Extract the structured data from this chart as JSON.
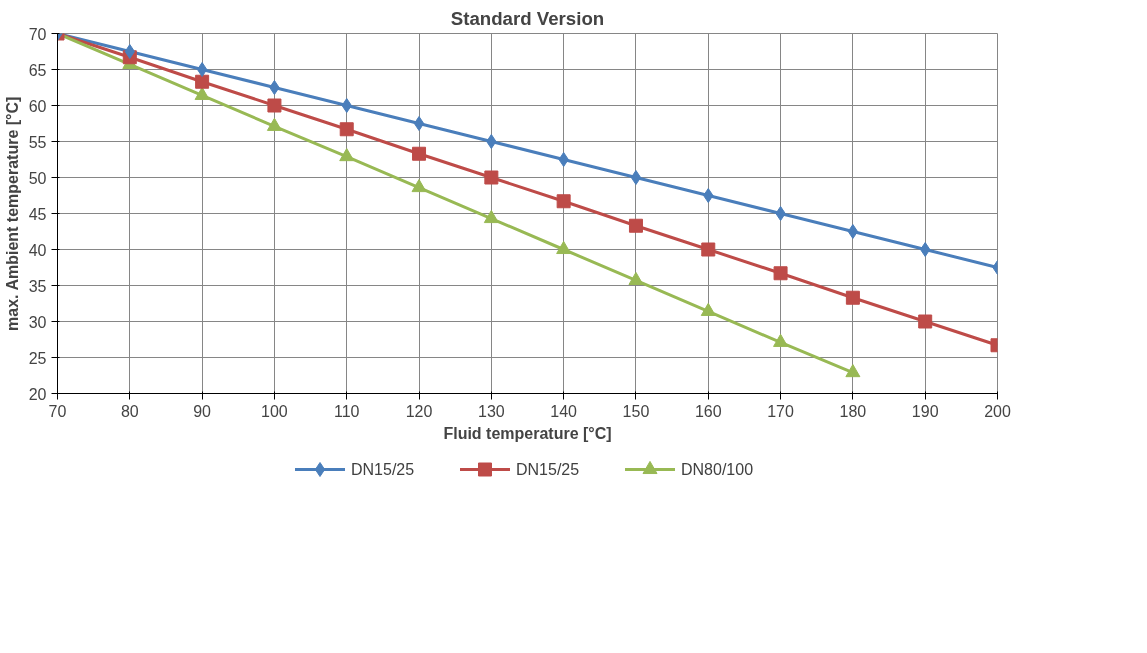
{
  "chart_data": {
    "type": "line",
    "title": "Standard Version",
    "xlabel": "Fluid temperature [°C]",
    "ylabel": "max. Ambient temperature [°C]",
    "x": [
      70,
      80,
      90,
      100,
      110,
      120,
      130,
      140,
      150,
      160,
      170,
      180,
      190,
      200
    ],
    "series": [
      {
        "name": "DN15/25",
        "color": "#4a7ebb",
        "marker": "diamond",
        "values": [
          70,
          67.5,
          65,
          62.5,
          60,
          57.5,
          55,
          52.5,
          50,
          47.5,
          45,
          42.5,
          40,
          37.5
        ]
      },
      {
        "name": "DN15/25",
        "color": "#be4b48",
        "marker": "square",
        "values": [
          70,
          66.7,
          63.3,
          60,
          56.7,
          53.3,
          50,
          46.7,
          43.3,
          40,
          36.7,
          33.3,
          30,
          26.7
        ]
      },
      {
        "name": "DN80/100",
        "color": "#98b954",
        "marker": "triangle",
        "values": [
          70,
          65.7,
          61.4,
          57.1,
          52.9,
          48.6,
          44.3,
          40,
          35.7,
          31.4,
          27.1,
          22.9,
          null,
          null
        ]
      }
    ],
    "xlim": [
      70,
      200
    ],
    "ylim": [
      20,
      70
    ],
    "xticks": [
      70,
      80,
      90,
      100,
      110,
      120,
      130,
      140,
      150,
      160,
      170,
      180,
      190,
      200
    ],
    "yticks": [
      20,
      25,
      30,
      35,
      40,
      45,
      50,
      55,
      60,
      65,
      70
    ],
    "grid": true,
    "legend": "bottom",
    "line_style": "solid"
  }
}
